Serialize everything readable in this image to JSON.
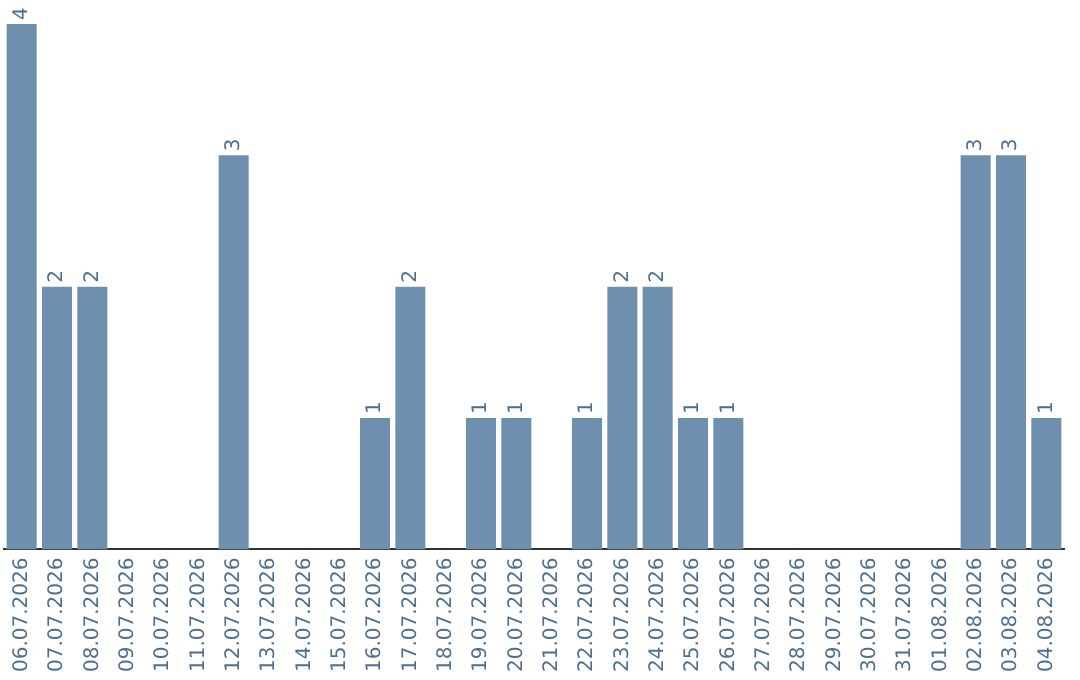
{
  "chart_data": {
    "type": "bar",
    "categories": [
      "06.07.2026",
      "07.07.2026",
      "08.07.2026",
      "09.07.2026",
      "10.07.2026",
      "11.07.2026",
      "12.07.2026",
      "13.07.2026",
      "14.07.2026",
      "15.07.2026",
      "16.07.2026",
      "17.07.2026",
      "18.07.2026",
      "19.07.2026",
      "20.07.2026",
      "21.07.2026",
      "22.07.2026",
      "23.07.2026",
      "24.07.2026",
      "25.07.2026",
      "26.07.2026",
      "27.07.2026",
      "28.07.2026",
      "29.07.2026",
      "30.07.2026",
      "31.07.2026",
      "01.08.2026",
      "02.08.2026",
      "03.08.2026",
      "04.08.2026"
    ],
    "values": [
      4,
      2,
      2,
      0,
      0,
      0,
      3,
      0,
      0,
      0,
      1,
      2,
      0,
      1,
      1,
      0,
      1,
      2,
      2,
      1,
      1,
      0,
      0,
      0,
      0,
      0,
      0,
      3,
      3,
      1
    ],
    "value_labels": [
      "4",
      "2",
      "2",
      null,
      null,
      null,
      "3",
      null,
      null,
      null,
      "1",
      "2",
      null,
      "1",
      "1",
      null,
      "1",
      "2",
      "2",
      "1",
      "1",
      null,
      null,
      null,
      null,
      null,
      null,
      "3",
      "3",
      "1"
    ],
    "color": "#6f8fae",
    "tick_labels": "x",
    "grid": false,
    "legend": false
  }
}
